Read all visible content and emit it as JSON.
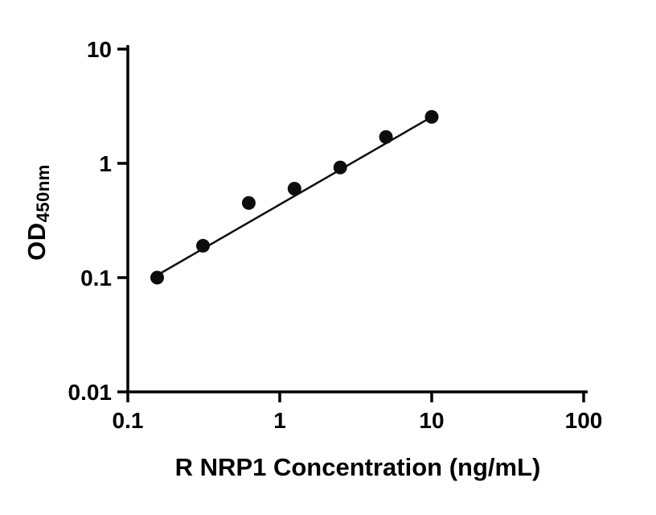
{
  "chart_data": {
    "type": "scatter",
    "title": "",
    "xlabel": "R NRP1 Concentration (ng/mL)",
    "ylabel": "OD",
    "ylabel_subscript": "450nm",
    "x_scale": "log10",
    "y_scale": "log10",
    "xlim": [
      0.1,
      100
    ],
    "ylim": [
      0.01,
      10
    ],
    "grid": false,
    "legend_position": "none",
    "axis_color": "#000000",
    "point_color": "#0d0d0d",
    "line_color": "#0d0d0d",
    "x_ticks": [
      {
        "value": 0.1,
        "label": "0.1"
      },
      {
        "value": 1,
        "label": "1"
      },
      {
        "value": 10,
        "label": "10"
      },
      {
        "value": 100,
        "label": "100"
      }
    ],
    "y_ticks": [
      {
        "value": 0.01,
        "label": "0.01"
      },
      {
        "value": 0.1,
        "label": "0.1"
      },
      {
        "value": 1,
        "label": "1"
      },
      {
        "value": 10,
        "label": "10"
      }
    ],
    "points": [
      {
        "x": 0.156,
        "y": 0.1
      },
      {
        "x": 0.3125,
        "y": 0.19
      },
      {
        "x": 0.625,
        "y": 0.45
      },
      {
        "x": 1.25,
        "y": 0.6
      },
      {
        "x": 2.5,
        "y": 0.92
      },
      {
        "x": 5,
        "y": 1.7
      },
      {
        "x": 10,
        "y": 2.55
      }
    ],
    "trendline": {
      "start": {
        "x": 0.156,
        "y": 0.105
      },
      "end": {
        "x": 10,
        "y": 2.55
      }
    }
  }
}
